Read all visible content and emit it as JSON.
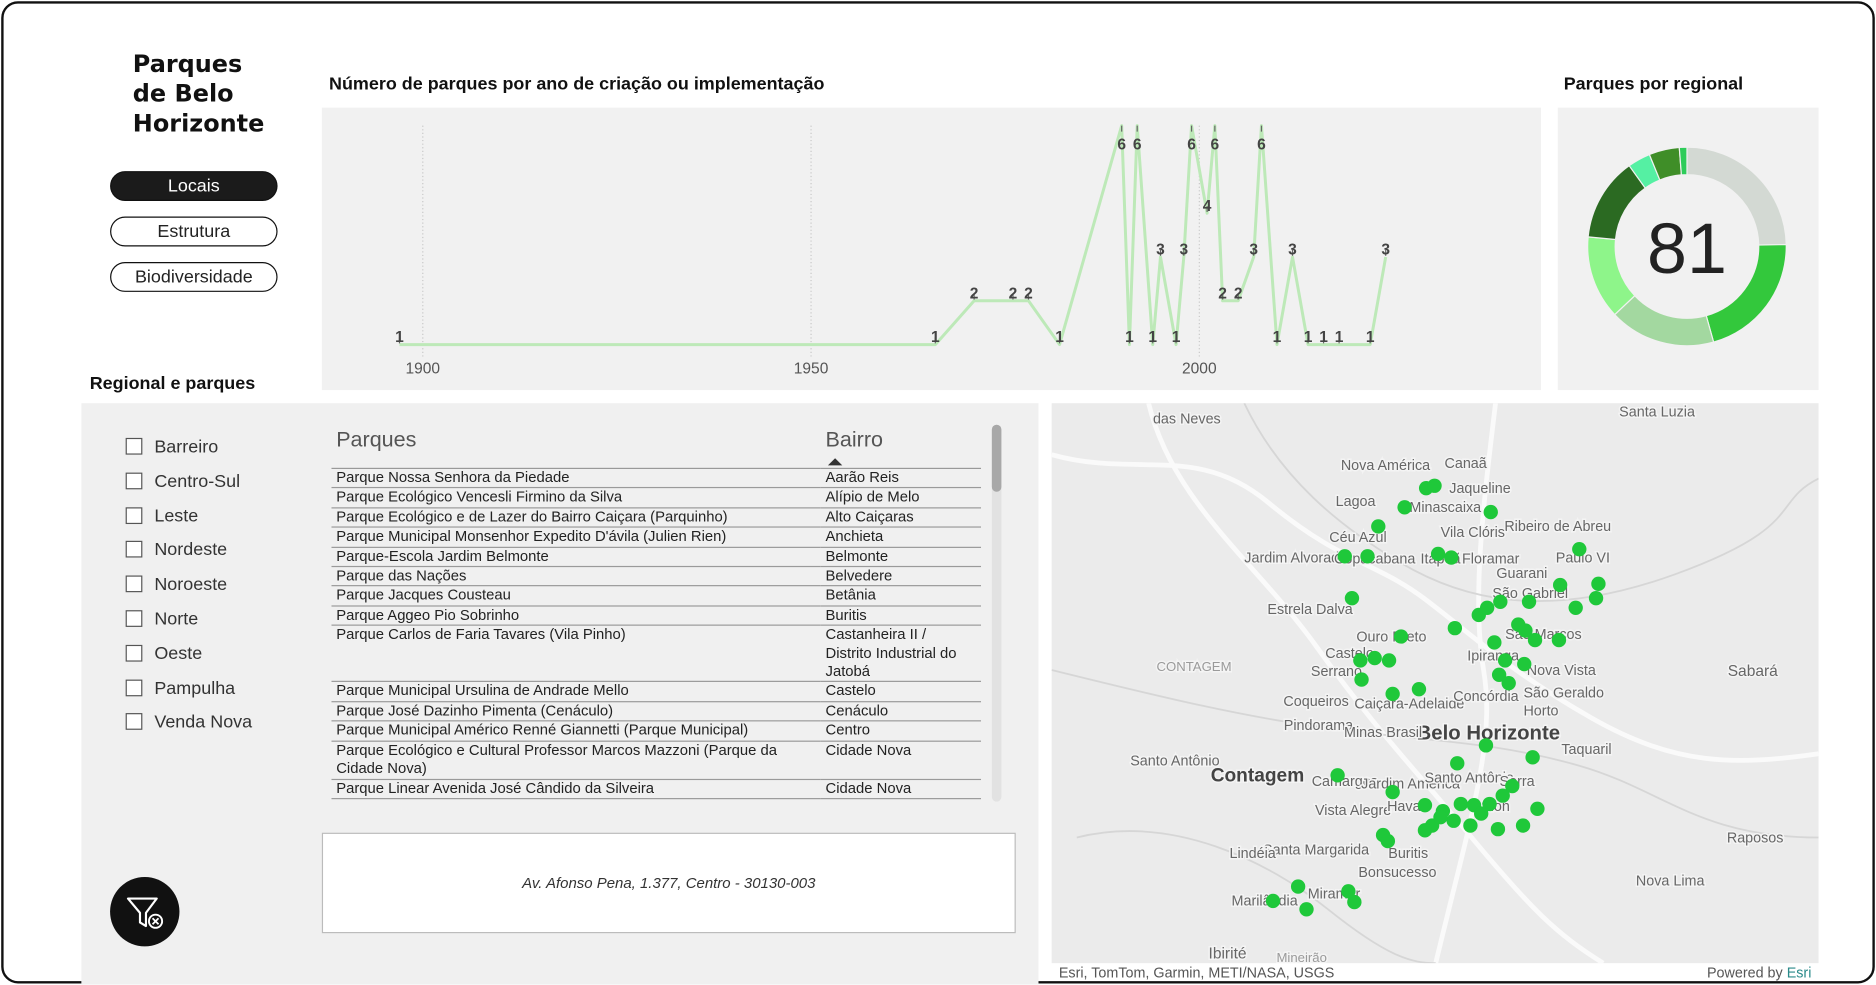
{
  "header": {
    "title": "Parques de Belo Horizonte"
  },
  "nav": [
    "Locais",
    "Estrutura",
    "Biodiversidade"
  ],
  "chart_data": [
    {
      "type": "line",
      "title": "Número de parques por ano de criação ou implementação",
      "x": [
        1897,
        1966,
        1971,
        1976,
        1978,
        1982,
        1990,
        1991,
        1992,
        1994,
        1995,
        1997,
        1998,
        1999,
        2001,
        2002,
        2003,
        2005,
        2007,
        2008,
        2010,
        2012,
        2014,
        2016,
        2018,
        2022,
        2024
      ],
      "series": [
        {
          "color": "#bde9b8",
          "values": [
            1,
            1,
            2,
            2,
            2,
            1,
            6,
            1,
            6,
            1,
            3,
            1,
            3,
            6,
            4,
            6,
            2,
            2,
            3,
            6,
            1,
            3,
            1,
            1,
            1,
            1,
            3
          ]
        }
      ],
      "xlim": [
        1887,
        2044
      ],
      "ylim": [
        0,
        6
      ],
      "xticks": [
        1900,
        1950,
        2000
      ],
      "grid": true
    },
    {
      "type": "pie",
      "title": "Parques por regional",
      "values": [
        20,
        17,
        14,
        11,
        11,
        3,
        4,
        1
      ],
      "colors": [
        "#d3d9d3",
        "#33c83c",
        "#a3d8a0",
        "#8ef58a",
        "#2b6a22",
        "#55f0a3",
        "#3f8e28",
        "#2ecc5a"
      ],
      "total": 81
    }
  ],
  "slicer": {
    "title": "Regional e parques",
    "options": [
      "Barreiro",
      "Centro-Sul",
      "Leste",
      "Nordeste",
      "Noroeste",
      "Norte",
      "Oeste",
      "Pampulha",
      "Venda Nova"
    ]
  },
  "table": {
    "columns": [
      "Parques",
      "Bairro"
    ],
    "rows": [
      [
        "Parque Nossa Senhora da Piedade",
        "Aarão Reis"
      ],
      [
        "Parque Ecológico Vencesli Firmino da Silva",
        "Alípio de Melo"
      ],
      [
        "Parque Ecológico e de Lazer do Bairro Caiçara (Parquinho)",
        "Alto Caiçaras"
      ],
      [
        "Parque Municipal Monsenhor Expedito D'ávila (Julien Rien)",
        "Anchieta"
      ],
      [
        "Parque-Escola Jardim Belmonte",
        "Belmonte"
      ],
      [
        "Parque das Nações",
        "Belvedere"
      ],
      [
        "Parque Jacques Cousteau",
        "Betânia"
      ],
      [
        "Parque Aggeo Pio Sobrinho",
        "Buritis"
      ],
      [
        "Parque Carlos de Faria Tavares (Vila Pinho)",
        "Castanheira II / Distrito Industrial do Jatobá"
      ],
      [
        "Parque Municipal Ursulina de Andrade Mello",
        "Castelo"
      ],
      [
        "Parque José Dazinho Pimenta (Cenáculo)",
        "Cenáculo"
      ],
      [
        "Parque Municipal Américo Renné Giannetti (Parque Municipal)",
        "Centro"
      ],
      [
        "Parque Ecológico e Cultural Professor Marcos Mazzoni (Parque da Cidade Nova)",
        "Cidade Nova"
      ],
      [
        "Parque Linear Avenida José Cândido da Silveira",
        "Cidade Nova"
      ]
    ]
  },
  "address": "Av. Afonso Pena, 1.377, Centro - 30130-003",
  "map": {
    "labels": [
      "das Neves",
      "Santa Luzia",
      "Nova América",
      "Canaã",
      "Jaqueline",
      "Lagoa",
      "Minascaixa",
      "Ribeiro de Abreu",
      "Vila Clóris",
      "Céu Azul",
      "Jardim Alvorada",
      "Copacabana",
      "Itapoã",
      "Floramar",
      "Paulo VI",
      "Guarani",
      "São Gabriel",
      "Estrela Dalva",
      "Ouro Preto",
      "São Marcos",
      "Castelo",
      "Ipiranga",
      "CONTAGEM",
      "Serrano",
      "Nova Vista",
      "São Geraldo",
      "Sabará",
      "Caiçara-Adelaide",
      "Concórdia",
      "Coqueiros",
      "Horto",
      "Belo Horizonte",
      "Pindorama",
      "Minas Brasil",
      "Taquaril",
      "Santo Antônio",
      "Contagem",
      "Camargos",
      "Jardim América",
      "Santo Antônio",
      "Serra",
      "Vista Alegre",
      "Havaí",
      "Sion",
      "Raposos",
      "Santa Margarida",
      "Lindéia",
      "Buritis",
      "Bonsucesso",
      "Nova Lima",
      "Marilândia",
      "Miramar",
      "Ibirité",
      "Mineirão"
    ],
    "attribution": "Esri, TomTom, Garmin, METI/NASA, USGS",
    "powered_by": "Powered by",
    "provider": "Esri"
  }
}
